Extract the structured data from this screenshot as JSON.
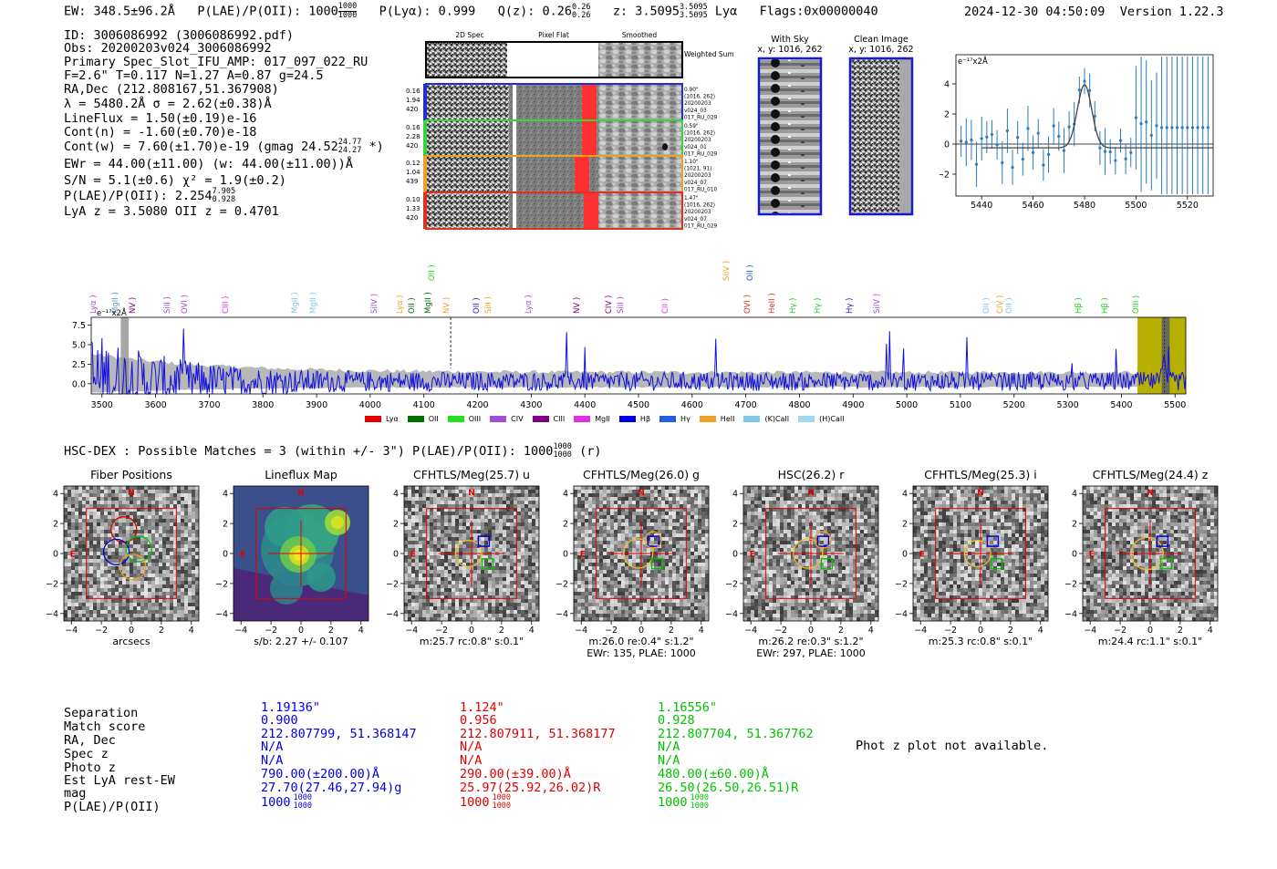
{
  "header": {
    "ew": "EW: 348.5±96.2Å",
    "plae_prefix": "P(LAE)/P(OII): 1000",
    "plae_top": "1000",
    "plae_bot": "1000",
    "plya": "P(Lyα): 0.999",
    "qz_prefix": "Q(z): 0.26",
    "qz_top": "0.26",
    "qz_bot": "0.26",
    "z_prefix": "z: 3.5095",
    "z_top": "3.5095",
    "z_bot": "3.5095",
    "z_line": "Lyα",
    "flags": "Flags:0x00000040",
    "timestamp": "2024-12-30 04:50:09",
    "version": "Version 1.22.3"
  },
  "info": {
    "id": "ID: 3006086992 (3006086992.pdf)",
    "obs": "Obs: 20200203v024_3006086992",
    "primary": "Primary Spec_Slot_IFU_AMP: 017_097_022_RU",
    "params": "F=2.6\"  T=0.117  N=1.27  A=0.87  g=24.5",
    "radec": "RA,Dec (212.808167,51.367908)",
    "lambda": "λ = 5480.2Å   σ = 2.62(±0.38)Å",
    "lineflux": "LineFlux = 1.50(±0.19)e-16",
    "contn": "Cont(n) = -1.60(±0.70)e-18",
    "contw_prefix": "Cont(w) = 7.60(±1.70)e-19 (gmag 24.52",
    "contw_top": "24.77",
    "contw_bot": "24.27",
    "contw_suffix": "*)",
    "ewr": "EWr = 44.00(±11.00)  (w: 44.00(±11.00))Å",
    "sn": "S/N = 5.1(±0.6)  χ² = 1.9(±0.2)",
    "plae_prefix": "P(LAE)/P(OII): 2.254",
    "plae_top": "7.905",
    "plae_bot": "0.928",
    "lyaz": "LyA z = 3.5080   OII z = 0.4701"
  },
  "fiber_panel": {
    "col_labels": [
      "2D Spec",
      "Pixel Flat",
      "Smoothed"
    ],
    "weighted_sum": "Weighted Sum",
    "rows": [
      {
        "left": [
          "0.16",
          "1.94",
          "420"
        ],
        "right": [
          "0.90\"",
          "(1016, 262)",
          "20200203",
          "v024_03",
          "017_RU_029"
        ],
        "color": "#1f2fd1"
      },
      {
        "left": [
          "0.16",
          "2.28",
          "420"
        ],
        "right": [
          "0.59\"",
          "(1016, 262)",
          "20200203",
          "v024_01",
          "017_RU_029"
        ],
        "color": "#35d63a"
      },
      {
        "left": [
          "0.12",
          "1.04",
          "439"
        ],
        "right": [
          "1.10\"",
          "(1021, 91)",
          "20200203",
          "v024_07",
          "017_RU_010"
        ],
        "color": "#f0a020"
      },
      {
        "left": [
          "0.10",
          "1.33",
          "420"
        ],
        "right": [
          "1.47\"",
          "(1016, 262)",
          "20200203",
          "v024_07",
          "017_RU_029"
        ],
        "color": "#e0301e"
      }
    ]
  },
  "sky_panels": {
    "with_sky_title": "With Sky",
    "with_sky_xy": "x, y: 1016, 262",
    "clean_title": "Clean Image",
    "clean_xy": "x, y: 1016, 262"
  },
  "zoom_chart": {
    "ylabel": "e⁻¹⁷x2Å",
    "x_ticks": [
      "5440",
      "5460",
      "5480",
      "5500",
      "5520"
    ],
    "y_ticks": [
      "4",
      "2",
      "0",
      "−2"
    ]
  },
  "line_labels": [
    {
      "name": "Lyα",
      "color": "#a050d0"
    },
    {
      "name": "MgII",
      "color": "#5a9ad6"
    },
    {
      "name": "NV",
      "color": "#800080"
    },
    {
      "name": "SiII",
      "color": "#a050d0"
    },
    {
      "name": "OVI",
      "color": "#a050d0"
    },
    {
      "name": "CIII",
      "color": "#e030e0"
    },
    {
      "name": "MgII",
      "color": "#80c8e8"
    },
    {
      "name": "MgII",
      "color": "#80c8e8"
    },
    {
      "name": "SiIV",
      "color": "#a050d0"
    },
    {
      "name": "Lyα",
      "color": "#f0a020"
    },
    {
      "name": "OII",
      "color": "#007000"
    },
    {
      "name": "MgII",
      "color": "#007000"
    },
    {
      "name": "OII",
      "color": "#20d020"
    },
    {
      "name": "NV",
      "color": "#f0a020"
    },
    {
      "name": "OII",
      "color": "#2020d0"
    },
    {
      "name": "SiII",
      "color": "#f0a020"
    },
    {
      "name": "Lyα",
      "color": "#a050d0"
    },
    {
      "name": "NV",
      "color": "#800080"
    },
    {
      "name": "CIV",
      "color": "#800080"
    },
    {
      "name": "SiII",
      "color": "#a050d0"
    },
    {
      "name": "CII",
      "color": "#e030e0"
    },
    {
      "name": "SiIV",
      "color": "#f0a020"
    },
    {
      "name": "OVI",
      "color": "#e0301e"
    },
    {
      "name": "OII",
      "color": "#2060d0"
    },
    {
      "name": "HeII",
      "color": "#e0301e"
    },
    {
      "name": "Hγ",
      "color": "#20d020"
    },
    {
      "name": "Hγ",
      "color": "#20d020"
    },
    {
      "name": "Hγ",
      "color": "#2020d0"
    },
    {
      "name": "SiIV",
      "color": "#a050d0"
    },
    {
      "name": "OII",
      "color": "#80c8e8"
    },
    {
      "name": "CIV",
      "color": "#f0a020"
    },
    {
      "name": "OII",
      "color": "#80c8e8"
    },
    {
      "name": "Hβ",
      "color": "#20d020"
    },
    {
      "name": "Hβ",
      "color": "#20d020"
    },
    {
      "name": "OIII",
      "color": "#20d020"
    }
  ],
  "chart_data": {
    "type": "line",
    "title": "",
    "ylabel": "e⁻¹⁷x2Å",
    "xlabel": "",
    "xlim": [
      3480,
      5520
    ],
    "ylim": [
      -1.3,
      8.5
    ],
    "x_ticks": [
      3500,
      3600,
      3700,
      3800,
      3900,
      4000,
      4100,
      4200,
      4300,
      4400,
      4500,
      4600,
      4700,
      4800,
      4900,
      5000,
      5100,
      5200,
      5300,
      5400,
      5500
    ],
    "y_ticks": [
      0.0,
      2.5,
      5.0,
      7.5
    ],
    "y_tick_labels": [
      "0.0",
      "2.5",
      "5.0",
      "7.5"
    ],
    "legend": [
      "Lyα",
      "OII",
      "OIII",
      "CIV",
      "CIII",
      "MgII",
      "Hβ",
      "Hγ",
      "HeII",
      "(K)CaII",
      "(H)CaII"
    ],
    "legend_colors": [
      "#e00000",
      "#007000",
      "#20e020",
      "#a050d0",
      "#800080",
      "#e030e0",
      "#0000e0",
      "#2060e0",
      "#f0a020",
      "#80c8e8",
      "#a0d8f0"
    ],
    "emission_line_wavelength": 5480.2,
    "dashed_line_wavelength": 4150
  },
  "hsc": {
    "summary_prefix": "HSC-DEX : Possible Matches = 3 (within +/- 3\")  P(LAE)/P(OII): 1000",
    "summary_top": "1000",
    "summary_bot": "1000",
    "summary_suffix": "(r)"
  },
  "cutouts": [
    {
      "title": "Fiber Positions",
      "caption": [
        "arcsecs"
      ]
    },
    {
      "title": "Lineflux Map",
      "caption": [
        "s/b: 2.27 +/- 0.107"
      ]
    },
    {
      "title": "CFHTLS/Meg(25.7) u",
      "caption": [
        "m:25.7 rc:0.8\"  s:0.1\""
      ]
    },
    {
      "title": "CFHTLS/Meg(26.0) g",
      "caption": [
        "m:26.0  re:0.4\"  s:1.2\"",
        "EWr: 135, PLAE: 1000"
      ]
    },
    {
      "title": "HSC(26.2) r",
      "caption": [
        "m:26.2  re:0.3\"  s:1.2\"",
        "EWr: 297, PLAE: 1000"
      ]
    },
    {
      "title": "CFHTLS/Meg(25.3) i",
      "caption": [
        "m:25.3 rc:0.8\"  s:0.1\""
      ]
    },
    {
      "title": "CFHTLS/Meg(24.4) z",
      "caption": [
        "m:24.4 rc:1.1\"  s:0.1\""
      ]
    }
  ],
  "cutout_axis": {
    "ticks": [
      "4",
      "2",
      "0",
      "−2",
      "−4"
    ],
    "xticks": [
      "−4",
      "−2",
      "0",
      "2",
      "4"
    ],
    "n_label": "N",
    "e_label": "E"
  },
  "match_table": {
    "labels": [
      "Separation",
      "Match score",
      "RA, Dec",
      "Spec z",
      "Photo z",
      "Est LyA rest-EW",
      "mag",
      "P(LAE)/P(OII)"
    ],
    "columns": [
      {
        "color": "#0000e0",
        "values": [
          "1.19136\"",
          "0.900",
          "212.807799, 51.368147",
          "N/A",
          "N/A",
          "790.00(±200.00)Å",
          "27.70(27.46,27.94)g",
          "1000"
        ],
        "frac_top": "1000",
        "frac_bot": "1000"
      },
      {
        "color": "#e00000",
        "values": [
          "1.124\"",
          "0.956",
          "212.807911, 51.368177",
          "N/A",
          "N/A",
          "290.00(±39.00)Å",
          "25.97(25.92,26.02)R",
          "1000"
        ],
        "frac_top": "1000",
        "frac_bot": "1000"
      },
      {
        "color": "#00c000",
        "values": [
          "1.16556\"",
          "0.928",
          "212.807704, 51.367762",
          "N/A",
          "N/A",
          "480.00(±60.00)Å",
          "26.50(26.50,26.51)R",
          "1000"
        ],
        "frac_top": "1000",
        "frac_bot": "1000"
      }
    ],
    "photz_note": "Phot z plot not available."
  }
}
